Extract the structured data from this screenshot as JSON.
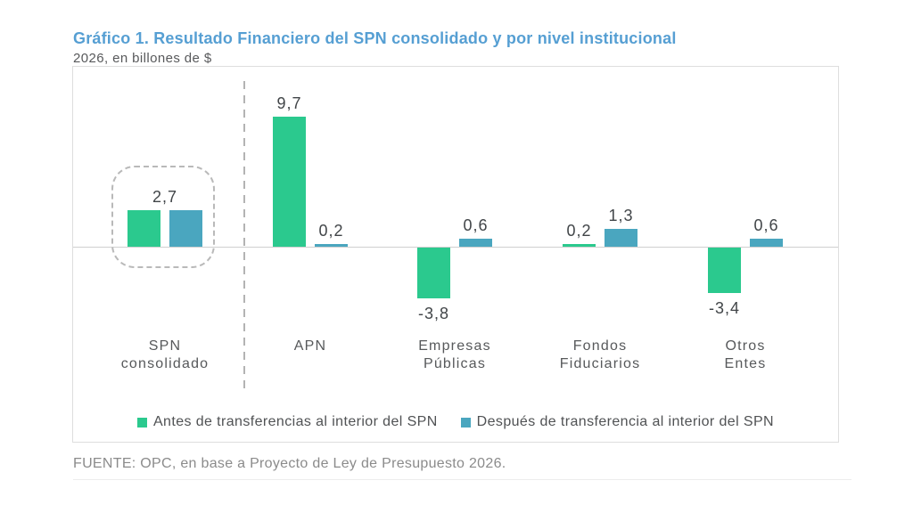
{
  "header": {
    "title": "Gráfico 1. Resultado Financiero del SPN consolidado y por nivel institucional",
    "subtitle": "2026, en billones de $"
  },
  "footer": {
    "source": "FUENTE: OPC, en base a Proyecto de Ley de Presupuesto 2026."
  },
  "colors": {
    "title_blue": "#569fd3",
    "series_green": "#2bc98e",
    "series_blue": "#4aa6bf",
    "axis_line": "#cfcfcf",
    "dashed_gray": "#b9b9b9"
  },
  "legend": [
    {
      "label": "Antes de transferencias al interior del SPN",
      "color": "#2bc98e"
    },
    {
      "label": "Después de transferencia al interior del SPN",
      "color": "#4aa6bf"
    }
  ],
  "chart_data": {
    "type": "bar",
    "title": "Gráfico 1. Resultado Financiero del SPN consolidado y por nivel institucional",
    "subtitle": "2026, en billones de $",
    "categories": [
      "SPN consolidado",
      "APN",
      "Empresas Públicas",
      "Fondos Fiduciarios",
      "Otros Entes"
    ],
    "category_lines": [
      [
        "SPN",
        "consolidado"
      ],
      [
        "APN"
      ],
      [
        "Empresas",
        "Públicas"
      ],
      [
        "Fondos",
        "Fiduciarios"
      ],
      [
        "Otros",
        "Entes"
      ]
    ],
    "series": [
      {
        "name": "Antes de transferencias al interior del SPN",
        "color": "#2bc98e",
        "values": [
          2.7,
          9.7,
          -3.8,
          0.2,
          -3.4
        ],
        "labels": [
          "2,7",
          "9,7",
          "-3,8",
          "0,2",
          "-3,4"
        ]
      },
      {
        "name": "Después de transferencia al interior del SPN",
        "color": "#4aa6bf",
        "values": [
          2.7,
          0.2,
          0.6,
          1.3,
          0.6
        ],
        "labels": [
          "2,7",
          "0,2",
          "0,6",
          "1,3",
          "0,6"
        ]
      }
    ],
    "shared_label_group": {
      "index": 0,
      "text": "2,7"
    },
    "highlight_group_index": 0,
    "separator_after_group_index": 0,
    "ylim": [
      -5,
      10.5
    ],
    "grid": false,
    "legend_position": "bottom"
  }
}
